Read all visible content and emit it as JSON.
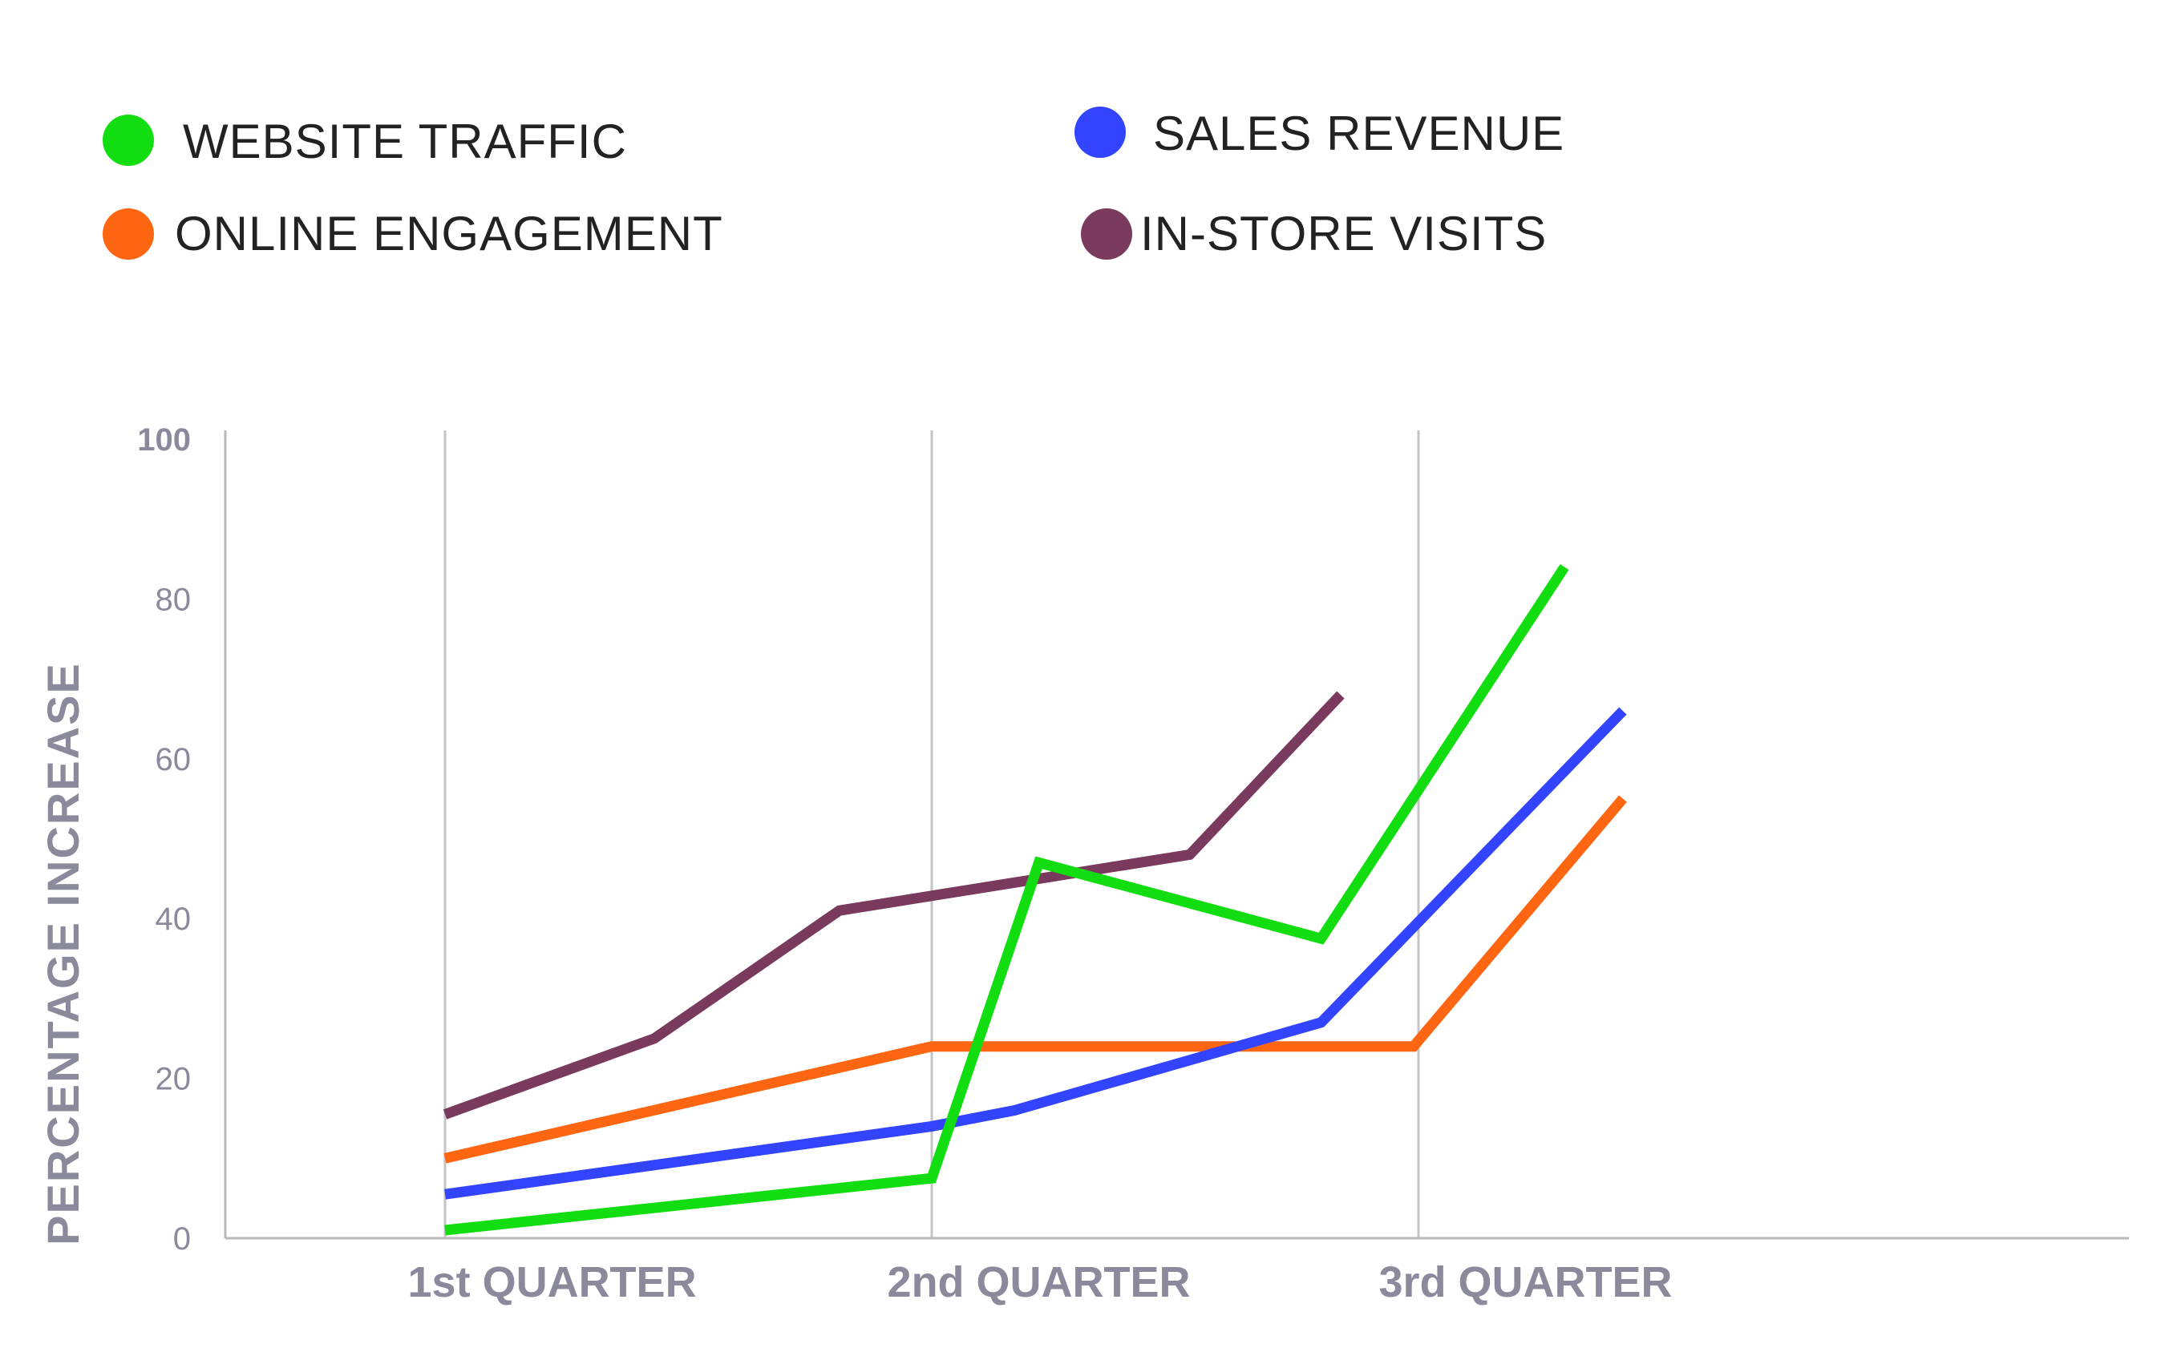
{
  "chart_data": {
    "type": "line",
    "title": "",
    "xlabel": "",
    "ylabel": "PERCENTAGE INCREASE",
    "ylim": [
      0,
      100
    ],
    "xlim": [
      0,
      3.6
    ],
    "yticks": [
      0,
      20,
      40,
      60,
      80,
      100
    ],
    "categories": [
      "1st QUARTER",
      "2nd QUARTER",
      "3rd QUARTER"
    ],
    "grid": "vertical lines at quarter boundaries",
    "legend_position": "top",
    "series": [
      {
        "name": "WEBSITE TRAFFIC",
        "color": "#11dd11",
        "points": [
          [
            0,
            1
          ],
          [
            1,
            7.5
          ],
          [
            1.22,
            47
          ],
          [
            1.8,
            37.5
          ],
          [
            2.3,
            84
          ]
        ]
      },
      {
        "name": "SALES REVENUE",
        "color": "#3344ff",
        "points": [
          [
            0,
            5.5
          ],
          [
            1,
            14
          ],
          [
            1.17,
            16
          ],
          [
            1.8,
            27
          ],
          [
            2.42,
            66
          ]
        ]
      },
      {
        "name": "ONLINE ENGAGEMENT",
        "color": "#ff6611",
        "points": [
          [
            0,
            10
          ],
          [
            1,
            24
          ],
          [
            1.99,
            24
          ],
          [
            2.42,
            55
          ]
        ]
      },
      {
        "name": "IN-STORE VISITS",
        "color": "#7a3a5e",
        "points": [
          [
            0,
            15.5
          ],
          [
            0.43,
            25
          ],
          [
            0.81,
            41
          ],
          [
            1.53,
            48
          ],
          [
            1.84,
            68
          ]
        ]
      }
    ]
  }
}
